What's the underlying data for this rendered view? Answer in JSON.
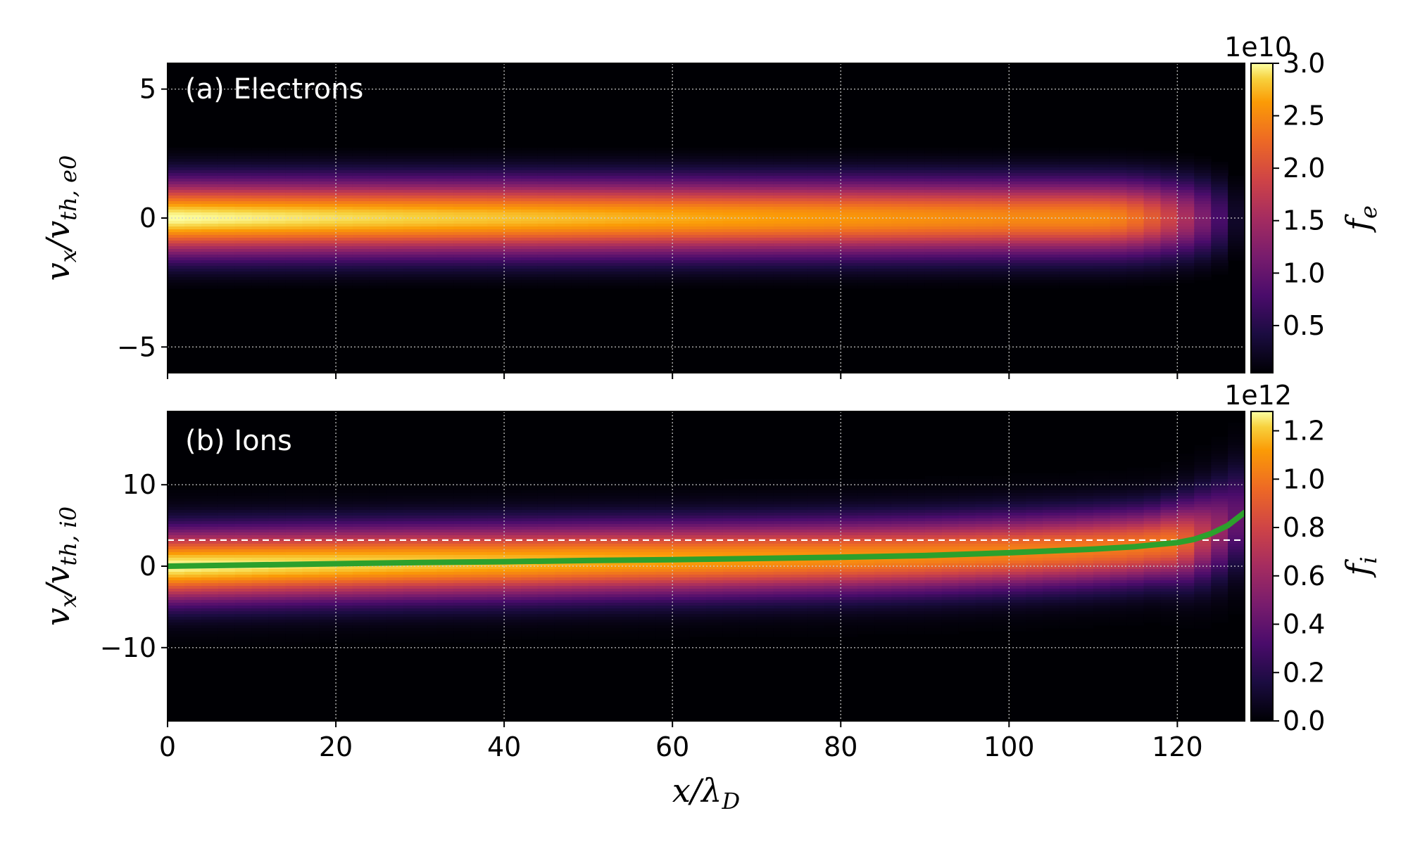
{
  "chart_data": [
    {
      "type": "heatmap",
      "panel_label": "(a) Electrons",
      "xlabel": "x/λ_D",
      "ylabel": "v_x/v_th,e0",
      "xlim": [
        0,
        128
      ],
      "ylim": [
        -6,
        6
      ],
      "x_ticks": [
        0,
        20,
        40,
        60,
        80,
        100,
        120
      ],
      "y_ticks": [
        -5,
        0,
        5
      ],
      "y_tick_labels": [
        "−5",
        "0",
        "5"
      ],
      "grid": true,
      "colormap": "inferno",
      "colorbar": {
        "label": "f_e",
        "range": [
          0.05,
          3.0
        ],
        "ticks": [
          0.5,
          1.0,
          1.5,
          2.0,
          2.5,
          3.0
        ],
        "tick_labels": [
          "0.5",
          "1.0",
          "1.5",
          "2.0",
          "2.5",
          "3.0"
        ],
        "exponent": "1e10"
      },
      "distribution": {
        "shape": "gaussian in v_x centred at 0",
        "peak_center_x0": 3.0,
        "peak_center_x100": 2.5,
        "velocity_width_sigma": 1.0,
        "falloff_near_x": 125
      }
    },
    {
      "type": "heatmap",
      "panel_label": "(b) Ions",
      "xlabel": "x/λ_D",
      "ylabel": "v_x/v_th,i0",
      "xlim": [
        0,
        128
      ],
      "ylim": [
        -19,
        19
      ],
      "x_ticks": [
        0,
        20,
        40,
        60,
        80,
        100,
        120
      ],
      "y_ticks": [
        -10,
        0,
        10
      ],
      "y_tick_labels": [
        "−10",
        "0",
        "10"
      ],
      "grid": true,
      "colormap": "inferno",
      "colorbar": {
        "label": "f_i",
        "range": [
          0.0,
          1.28
        ],
        "ticks": [
          0.0,
          0.2,
          0.4,
          0.6,
          0.8,
          1.0,
          1.2
        ],
        "tick_labels": [
          "0.0",
          "0.2",
          "0.4",
          "0.6",
          "0.8",
          "1.0",
          "1.2"
        ],
        "exponent": "1e12"
      },
      "mean_velocity_curve": {
        "color": "#2ca02c",
        "x": [
          0,
          10,
          20,
          30,
          40,
          50,
          60,
          70,
          80,
          90,
          100,
          110,
          115,
          120,
          122,
          124,
          126,
          128
        ],
        "y": [
          0.0,
          0.15,
          0.3,
          0.45,
          0.55,
          0.7,
          0.8,
          0.95,
          1.1,
          1.3,
          1.65,
          2.1,
          2.4,
          2.9,
          3.3,
          4.0,
          5.0,
          6.6
        ]
      },
      "reference_line": {
        "y": 3.2,
        "style": "dashed",
        "color": "#ffffff"
      },
      "distribution": {
        "shape": "gaussian in v_x centred on mean velocity curve",
        "peak_center": 1.28,
        "peak_near_x120": 1.0,
        "velocity_width_sigma": 3.0
      }
    }
  ]
}
